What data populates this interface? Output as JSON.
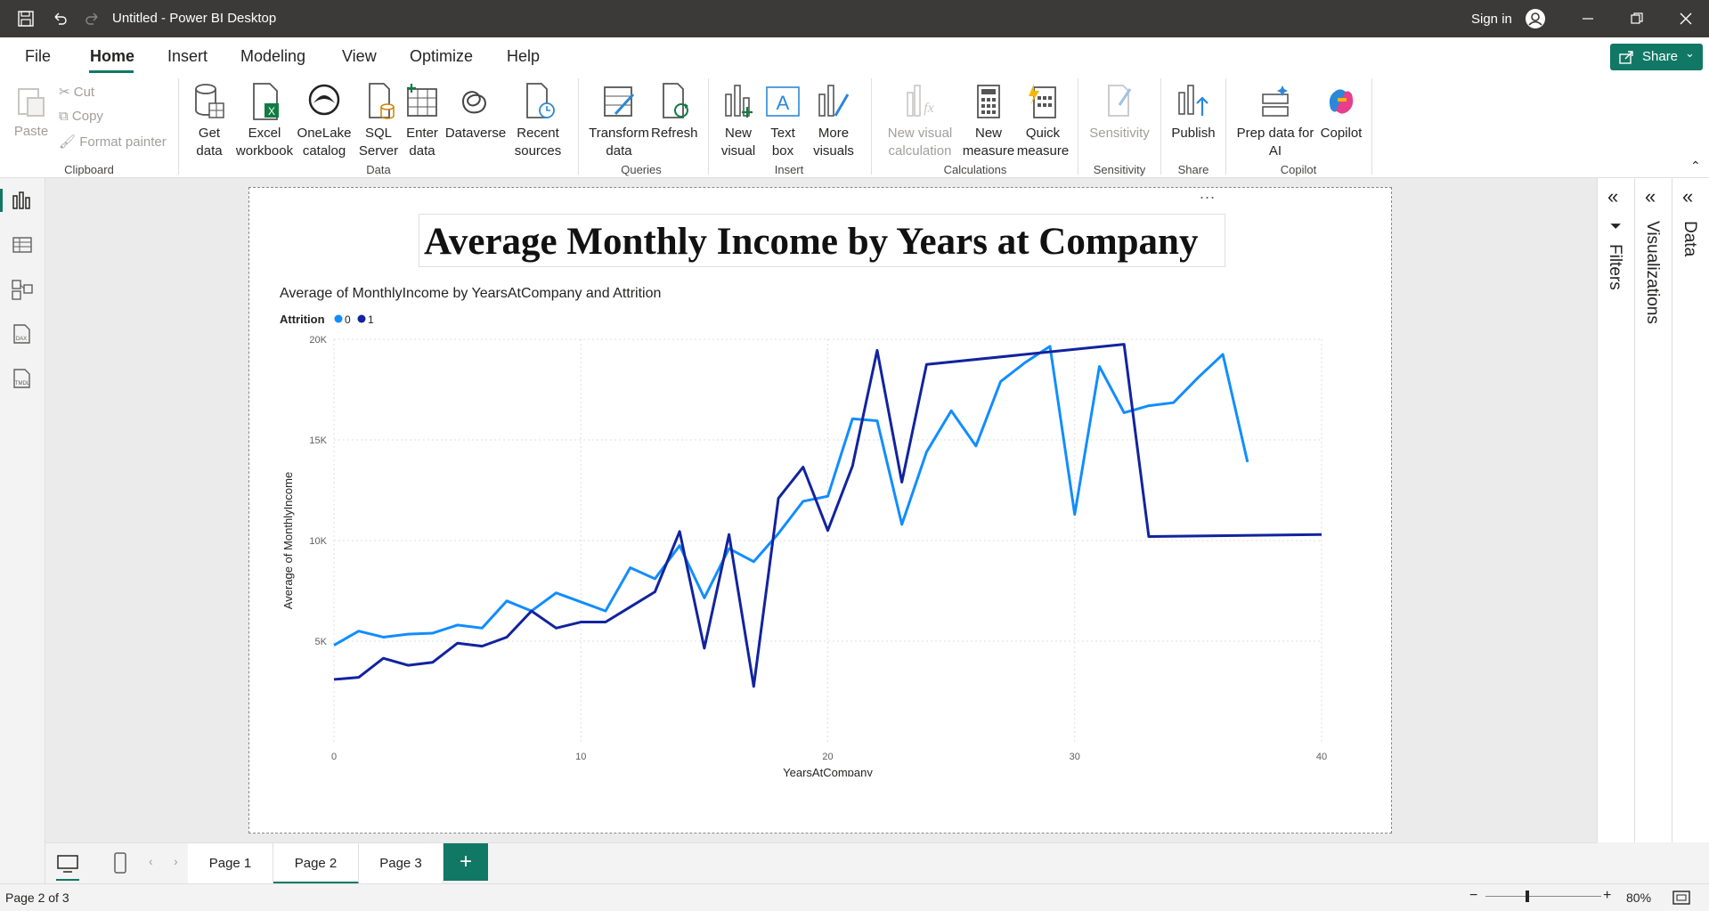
{
  "window": {
    "title": "Untitled - Power BI Desktop",
    "sign_in": "Sign in"
  },
  "menu": {
    "items": [
      "File",
      "Home",
      "Insert",
      "Modeling",
      "View",
      "Optimize",
      "Help"
    ],
    "active": "Home",
    "share": "Share"
  },
  "ribbon": {
    "clipboard": {
      "paste": "Paste",
      "cut": "Cut",
      "copy": "Copy",
      "format_painter": "Format painter",
      "group": "Clipboard"
    },
    "data": {
      "get_data": "Get data",
      "excel": "Excel workbook",
      "onelake": "OneLake catalog",
      "sql": "SQL Server",
      "enter": "Enter data",
      "dataverse": "Dataverse",
      "recent": "Recent sources",
      "group": "Data"
    },
    "queries": {
      "transform": "Transform data",
      "refresh": "Refresh",
      "group": "Queries"
    },
    "insert": {
      "new_visual": "New visual",
      "text_box": "Text box",
      "more_visuals": "More visuals",
      "group": "Insert"
    },
    "calculations": {
      "new_visual_calc": "New visual calculation",
      "new_measure": "New measure",
      "quick_measure": "Quick measure",
      "group": "Calculations"
    },
    "sensitivity": {
      "label": "Sensitivity",
      "group": "Sensitivity"
    },
    "share": {
      "publish": "Publish",
      "group": "Share"
    },
    "copilot": {
      "prep": "Prep data for AI",
      "copilot": "Copilot",
      "group": "Copilot"
    }
  },
  "canvas": {
    "title_box": "Average Monthly Income by Years at Company",
    "more_options": "..."
  },
  "panes": {
    "filters": "Filters",
    "visualizations": "Visualizations",
    "data": "Data"
  },
  "pages": {
    "tabs": [
      "Page 1",
      "Page 2",
      "Page 3"
    ],
    "active": "Page 2",
    "add": "+"
  },
  "status": {
    "page_indicator": "Page 2 of 3",
    "zoom": "80%"
  },
  "colors": {
    "series_0": "#118DFF",
    "series_1": "#12239E",
    "accent": "#117865"
  },
  "chart_data": {
    "type": "line",
    "title": "Average of MonthlyIncome by YearsAtCompany and Attrition",
    "legend_title": "Attrition",
    "legend_position": "top-left",
    "xlabel": "YearsAtCompany",
    "ylabel": "Average of MonthlyIncome",
    "xlim": [
      0,
      40
    ],
    "ylim": [
      0,
      20000
    ],
    "xticks": [
      "0",
      "10",
      "20",
      "30",
      "40"
    ],
    "xtick_values": [
      0,
      10,
      20,
      30,
      40
    ],
    "yticks": [
      "5K",
      "10K",
      "15K",
      "20K"
    ],
    "ytick_values": [
      5000,
      10000,
      15000,
      20000
    ],
    "grid": true,
    "series": [
      {
        "name": "0",
        "x": [
          0,
          1,
          2,
          3,
          4,
          5,
          6,
          7,
          8,
          9,
          10,
          11,
          12,
          13,
          14,
          15,
          16,
          17,
          18,
          19,
          20,
          21,
          22,
          23,
          24,
          25,
          26,
          27,
          28,
          29,
          30,
          31,
          32,
          33,
          34,
          35,
          36,
          37
        ],
        "y": [
          4800,
          5500,
          5200,
          5350,
          5400,
          5800,
          5650,
          7000,
          6500,
          7400,
          6950,
          6500,
          8650,
          8100,
          9750,
          7150,
          9600,
          8950,
          10350,
          11950,
          12200,
          16050,
          15950,
          10800,
          14400,
          16450,
          14700,
          17900,
          18850,
          19650,
          11300,
          18650,
          16350,
          16700,
          16850,
          18100,
          19250,
          13900
        ]
      },
      {
        "name": "1",
        "x": [
          0,
          1,
          2,
          3,
          4,
          5,
          6,
          7,
          8,
          9,
          10,
          11,
          12,
          13,
          14,
          15,
          16,
          17,
          18,
          19,
          20,
          21,
          22,
          23,
          24,
          32,
          33,
          40
        ],
        "y": [
          3100,
          3200,
          4150,
          3800,
          3950,
          4900,
          4750,
          5200,
          6500,
          5650,
          5950,
          5950,
          6700,
          7450,
          10450,
          4650,
          10300,
          2750,
          12100,
          13650,
          10500,
          13700,
          19450,
          12900,
          18750,
          19750,
          10200,
          10300
        ]
      }
    ]
  }
}
